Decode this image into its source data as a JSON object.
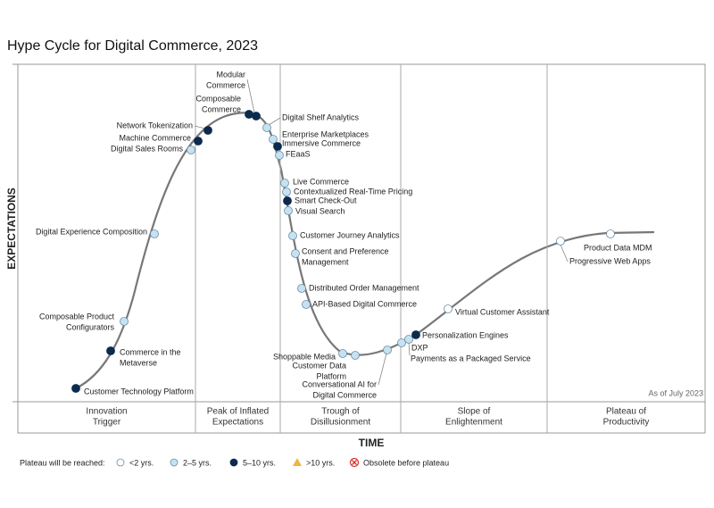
{
  "title": "Hype Cycle for Digital Commerce, 2023",
  "y_axis_label": "EXPECTATIONS",
  "x_axis_label": "TIME",
  "note": "As of July 2023",
  "phases": [
    [
      "Innovation",
      "Trigger"
    ],
    [
      "Peak of Inflated",
      "Expectations"
    ],
    [
      "Trough of",
      "Disillusionment"
    ],
    [
      "Slope of",
      "Enlightenment"
    ],
    [
      "Plateau of",
      "Productivity"
    ]
  ],
  "legend": {
    "title": "Plateau will be reached:",
    "items": [
      {
        "label": "<2 yrs.",
        "color": "#ffffff",
        "marker": "circle"
      },
      {
        "label": "2–5 yrs.",
        "color": "#c6e2f1",
        "marker": "circle"
      },
      {
        "label": "5–10 yrs.",
        "color": "#0c2a4e",
        "marker": "circle"
      },
      {
        "label": ">10 yrs.",
        "color": "#f2b441",
        "marker": "triangle"
      },
      {
        "label": "Obsolete before plateau",
        "color": "#d9302c",
        "marker": "cross"
      }
    ]
  },
  "nodes": [
    {
      "label": [
        "Customer Technology Platform"
      ],
      "color": "#0c2a4e"
    },
    {
      "label": [
        "Commerce in the",
        "Metaverse"
      ],
      "color": "#0c2a4e"
    },
    {
      "label": [
        "Composable Product",
        "Configurators"
      ],
      "color": "#c6e2f1"
    },
    {
      "label": [
        "Digital Experience Composition"
      ],
      "color": "#c6e2f1"
    },
    {
      "label": [
        "Digital Sales Rooms"
      ],
      "color": "#c6e2f1"
    },
    {
      "label": [
        "Machine Commerce"
      ],
      "color": "#0c2a4e"
    },
    {
      "label": [
        "Network Tokenization"
      ],
      "color": "#0c2a4e"
    },
    {
      "label": [
        "Composable",
        "Commerce"
      ],
      "color": "#0c2a4e"
    },
    {
      "label": [
        "Modular",
        "Commerce"
      ],
      "color": "#0c2a4e"
    },
    {
      "label": [
        "Digital Shelf Analytics"
      ],
      "color": "#c6e2f1"
    },
    {
      "label": [
        "Enterprise Marketplaces"
      ],
      "color": "#c6e2f1"
    },
    {
      "label": [
        "Immersive Commerce"
      ],
      "color": "#0c2a4e"
    },
    {
      "label": [
        "FEaaS"
      ],
      "color": "#c6e2f1"
    },
    {
      "label": [
        "Live Commerce"
      ],
      "color": "#c6e2f1"
    },
    {
      "label": [
        "Contextualized Real-Time Pricing"
      ],
      "color": "#c6e2f1"
    },
    {
      "label": [
        "Smart Check-Out"
      ],
      "color": "#0c2a4e"
    },
    {
      "label": [
        "Visual Search"
      ],
      "color": "#c6e2f1"
    },
    {
      "label": [
        "Customer Journey Analytics"
      ],
      "color": "#c6e2f1"
    },
    {
      "label": [
        "Consent and Preference",
        "Management"
      ],
      "color": "#c6e2f1"
    },
    {
      "label": [
        "Distributed Order Management"
      ],
      "color": "#c6e2f1"
    },
    {
      "label": [
        "API-Based Digital Commerce"
      ],
      "color": "#c6e2f1"
    },
    {
      "label": [
        "Shoppable Media"
      ],
      "color": "#c6e2f1"
    },
    {
      "label": [
        "Customer Data",
        "Platform"
      ],
      "color": "#c6e2f1"
    },
    {
      "label": [
        "Conversational AI for",
        "Digital Commerce"
      ],
      "color": "#c6e2f1"
    },
    {
      "label": [
        "DXP"
      ],
      "color": "#c6e2f1"
    },
    {
      "label": [
        "Payments as a Packaged Service"
      ],
      "color": "#c6e2f1"
    },
    {
      "label": [
        "Personalization Engines"
      ],
      "color": "#0c2a4e"
    },
    {
      "label": [
        "Virtual Customer Assistant"
      ],
      "color": "#ffffff"
    },
    {
      "label": [
        "Product Data MDM"
      ],
      "color": "#ffffff"
    },
    {
      "label": [
        "Progressive Web Apps"
      ],
      "color": "#ffffff"
    }
  ]
}
